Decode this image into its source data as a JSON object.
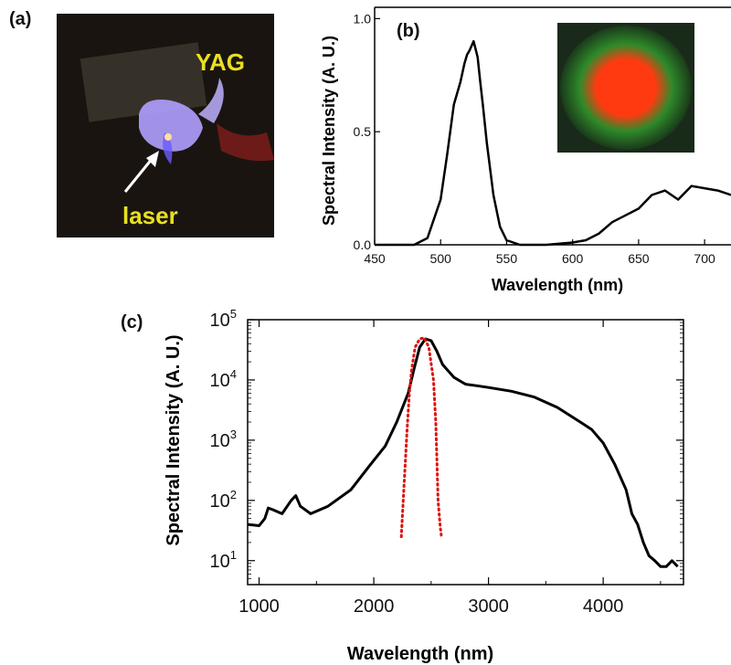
{
  "panels": {
    "a": {
      "label": "(a)"
    },
    "b": {
      "label": "(b)"
    },
    "c": {
      "label": "(c)"
    }
  },
  "photo": {
    "yag_label": "YAG",
    "laser_label": "laser",
    "colors": {
      "background": "#1a1410",
      "yag_text": "#e8e020",
      "crystal": "#b0a0ff",
      "arrow": "#ffffff"
    }
  },
  "chart_data": [
    {
      "id": "b",
      "type": "line",
      "xlabel": "Wavelength (nm)",
      "ylabel": "Spectral Intensity (A. U.)",
      "xlim": [
        450,
        720
      ],
      "ylim": [
        0,
        1.05
      ],
      "xticks": [
        450,
        500,
        550,
        600,
        650,
        700
      ],
      "yticks": [
        0.0,
        0.5,
        1.0
      ],
      "ytick_labels": [
        "0.0",
        "0.5",
        "1.0"
      ],
      "grid": false,
      "series": [
        {
          "color": "#000000",
          "x": [
            450,
            480,
            490,
            500,
            505,
            510,
            515,
            518,
            520,
            522,
            525,
            528,
            530,
            532,
            535,
            540,
            545,
            550,
            555,
            560,
            580,
            600,
            610,
            620,
            630,
            640,
            650,
            660,
            670,
            680,
            690,
            700,
            710,
            720
          ],
          "y": [
            0,
            0,
            0.03,
            0.2,
            0.4,
            0.62,
            0.72,
            0.8,
            0.84,
            0.86,
            0.9,
            0.83,
            0.72,
            0.62,
            0.45,
            0.22,
            0.08,
            0.02,
            0.01,
            0,
            0,
            0.01,
            0.02,
            0.05,
            0.1,
            0.13,
            0.16,
            0.22,
            0.24,
            0.2,
            0.26,
            0.25,
            0.24,
            0.22
          ]
        }
      ],
      "inset": {
        "kind": "beam-profile",
        "colors": {
          "outer": "#1a3a1a",
          "mid": "#2f8a2a",
          "core": "#ff3a10"
        }
      }
    },
    {
      "id": "c",
      "type": "line",
      "xlabel": "Wavelength (nm)",
      "ylabel": "Spectral Intensity (A. U.)",
      "yscale": "log",
      "xlim": [
        900,
        4700
      ],
      "ylim": [
        4,
        100000
      ],
      "xticks": [
        1000,
        2000,
        3000,
        4000
      ],
      "yticks_exponents": [
        1,
        2,
        3,
        4,
        5
      ],
      "ytick_base": "10",
      "grid": false,
      "series": [
        {
          "color": "#000000",
          "style": "solid",
          "x": [
            900,
            1000,
            1050,
            1080,
            1120,
            1200,
            1280,
            1320,
            1360,
            1450,
            1600,
            1800,
            1950,
            2100,
            2200,
            2300,
            2350,
            2400,
            2450,
            2500,
            2550,
            2600,
            2700,
            2800,
            2900,
            3000,
            3200,
            3400,
            3600,
            3800,
            3900,
            4000,
            4100,
            4200,
            4250,
            4300,
            4350,
            4400,
            4450,
            4500,
            4550,
            4600,
            4650
          ],
          "y": [
            40,
            38,
            50,
            75,
            70,
            60,
            100,
            120,
            80,
            60,
            80,
            150,
            350,
            800,
            2000,
            6000,
            15000,
            35000,
            48000,
            45000,
            30000,
            18000,
            11000,
            8500,
            8000,
            7500,
            6500,
            5200,
            3500,
            2000,
            1500,
            900,
            400,
            150,
            60,
            40,
            20,
            12,
            10,
            8,
            8,
            10,
            8
          ]
        },
        {
          "color": "#dd1111",
          "style": "dotted",
          "x": [
            2240,
            2250,
            2270,
            2290,
            2310,
            2330,
            2360,
            2400,
            2440,
            2480,
            2520,
            2540,
            2550,
            2560,
            2570,
            2580,
            2590
          ],
          "y": [
            25,
            60,
            300,
            1500,
            6000,
            15000,
            35000,
            48000,
            50000,
            35000,
            10000,
            2000,
            500,
            100,
            60,
            35,
            25
          ]
        }
      ]
    }
  ]
}
